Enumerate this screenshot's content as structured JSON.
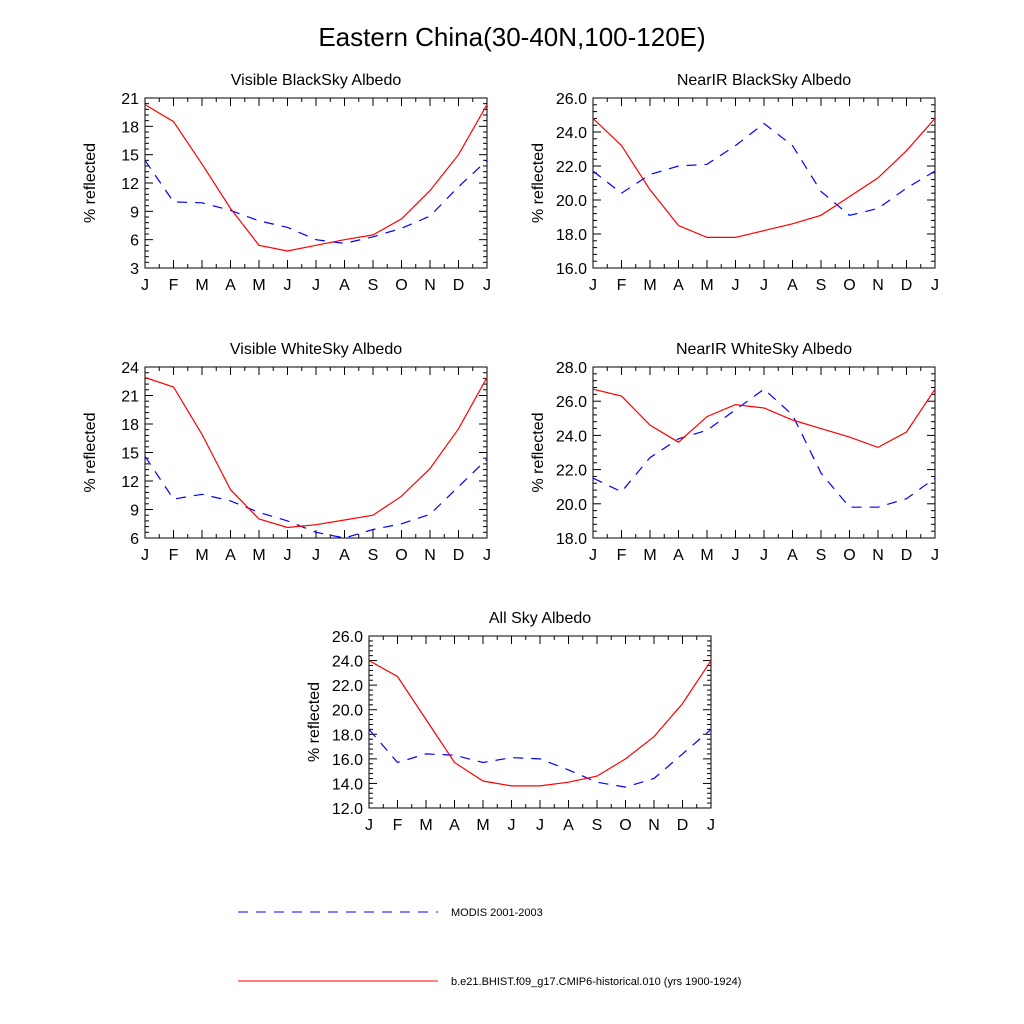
{
  "title": "Eastern China(30-40N,100-120E)",
  "legend": [
    {
      "label": "MODIS 2001-2003",
      "color": "#0000ff",
      "dash": "dashed"
    },
    {
      "label": "b.e21.BHIST.f09_g17.CMIP6-historical.010 (yrs 1900-1924)",
      "color": "#ff0000",
      "dash": "solid"
    }
  ],
  "chart_data": [
    {
      "type": "line",
      "title": "Visible BlackSky Albedo",
      "ylabel": "% reflected",
      "categories": [
        "J",
        "F",
        "M",
        "A",
        "M",
        "J",
        "J",
        "A",
        "S",
        "O",
        "N",
        "D",
        "J"
      ],
      "ylim": [
        3,
        21
      ],
      "yticks": [
        "3",
        "6",
        "9",
        "12",
        "15",
        "18",
        "21"
      ],
      "series": [
        {
          "color": "#0000ff",
          "dash": "dashed",
          "values": [
            14.4,
            10.0,
            9.9,
            9.1,
            8.0,
            7.3,
            6.0,
            5.6,
            6.3,
            7.2,
            8.5,
            11.6,
            14.4
          ]
        },
        {
          "color": "#ff0000",
          "dash": "solid",
          "values": [
            20.3,
            18.5,
            14.0,
            9.3,
            5.4,
            4.8,
            5.4,
            6.0,
            6.5,
            8.2,
            11.2,
            15.0,
            20.3
          ]
        }
      ]
    },
    {
      "type": "line",
      "title": "NearIR BlackSky Albedo",
      "ylabel": "% reflected",
      "categories": [
        "J",
        "F",
        "M",
        "A",
        "M",
        "J",
        "J",
        "A",
        "S",
        "O",
        "N",
        "D",
        "J"
      ],
      "ylim": [
        16,
        26
      ],
      "yticks": [
        "16.0",
        "18.0",
        "20.0",
        "22.0",
        "24.0",
        "26.0"
      ],
      "series": [
        {
          "color": "#0000ff",
          "dash": "dashed",
          "values": [
            21.7,
            20.4,
            21.5,
            22.0,
            22.1,
            23.2,
            24.5,
            23.2,
            20.5,
            19.1,
            19.5,
            20.7,
            21.7
          ]
        },
        {
          "color": "#ff0000",
          "dash": "solid",
          "values": [
            24.8,
            23.2,
            20.6,
            18.5,
            17.8,
            17.8,
            18.2,
            18.6,
            19.1,
            20.2,
            21.3,
            22.9,
            24.8
          ]
        }
      ]
    },
    {
      "type": "line",
      "title": "Visible WhiteSky Albedo",
      "ylabel": "% reflected",
      "categories": [
        "J",
        "F",
        "M",
        "A",
        "M",
        "J",
        "J",
        "A",
        "S",
        "O",
        "N",
        "D",
        "J"
      ],
      "ylim": [
        6,
        24
      ],
      "yticks": [
        "6",
        "9",
        "12",
        "15",
        "18",
        "21",
        "24"
      ],
      "series": [
        {
          "color": "#0000ff",
          "dash": "dashed",
          "values": [
            14.6,
            10.1,
            10.6,
            9.9,
            8.7,
            7.8,
            6.6,
            6.0,
            6.9,
            7.5,
            8.5,
            11.4,
            14.3
          ]
        },
        {
          "color": "#ff0000",
          "dash": "solid",
          "values": [
            22.9,
            21.9,
            16.9,
            11.1,
            8.0,
            7.1,
            7.4,
            7.9,
            8.4,
            10.4,
            13.3,
            17.5,
            22.9
          ]
        }
      ]
    },
    {
      "type": "line",
      "title": "NearIR WhiteSky Albedo",
      "ylabel": "% reflected",
      "categories": [
        "J",
        "F",
        "M",
        "A",
        "M",
        "J",
        "J",
        "A",
        "S",
        "O",
        "N",
        "D",
        "J"
      ],
      "ylim": [
        18,
        28
      ],
      "yticks": [
        "18.0",
        "20.0",
        "22.0",
        "24.0",
        "26.0",
        "28.0"
      ],
      "series": [
        {
          "color": "#0000ff",
          "dash": "dashed",
          "values": [
            21.5,
            20.7,
            22.7,
            23.8,
            24.3,
            25.5,
            26.7,
            25.2,
            21.8,
            19.8,
            19.8,
            20.3,
            21.5
          ]
        },
        {
          "color": "#ff0000",
          "dash": "solid",
          "values": [
            26.7,
            26.3,
            24.6,
            23.6,
            25.1,
            25.8,
            25.6,
            24.9,
            24.4,
            23.9,
            23.3,
            24.2,
            26.7
          ]
        }
      ]
    },
    {
      "type": "line",
      "title": "All Sky Albedo",
      "ylabel": "% reflected",
      "categories": [
        "J",
        "F",
        "M",
        "A",
        "M",
        "J",
        "J",
        "A",
        "S",
        "O",
        "N",
        "D",
        "J"
      ],
      "ylim": [
        12,
        26
      ],
      "yticks": [
        "12.0",
        "14.0",
        "16.0",
        "18.0",
        "20.0",
        "22.0",
        "24.0",
        "26.0"
      ],
      "series": [
        {
          "color": "#0000ff",
          "dash": "dashed",
          "values": [
            18.4,
            15.7,
            16.4,
            16.3,
            15.7,
            16.1,
            16.0,
            15.1,
            14.1,
            13.7,
            14.4,
            16.4,
            18.4
          ]
        },
        {
          "color": "#ff0000",
          "dash": "solid",
          "values": [
            24.0,
            22.7,
            19.2,
            15.7,
            14.2,
            13.8,
            13.8,
            14.1,
            14.6,
            16.0,
            17.8,
            20.5,
            24.0
          ]
        }
      ]
    }
  ]
}
